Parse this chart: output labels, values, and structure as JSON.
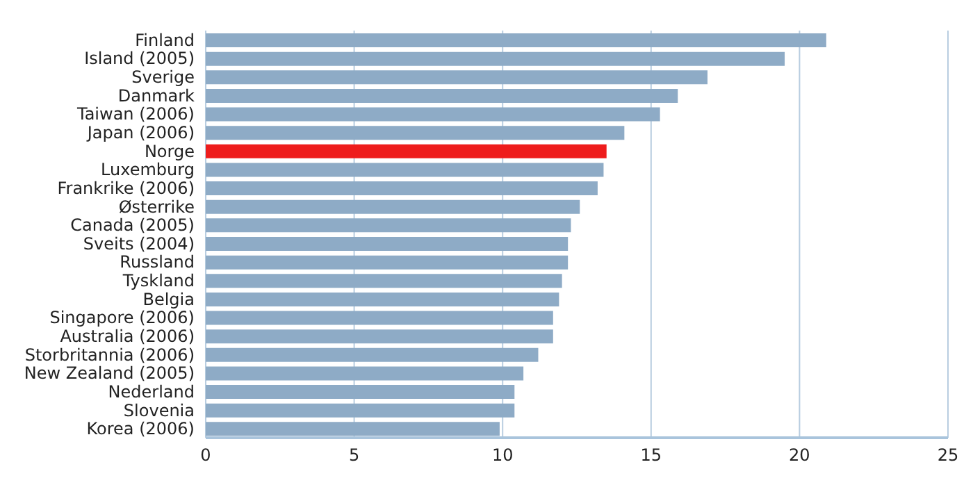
{
  "chart_data": {
    "type": "bar",
    "orientation": "horizontal",
    "categories": [
      "Finland",
      "Island (2005)",
      "Sverige",
      "Danmark",
      "Taiwan (2006)",
      "Japan (2006)",
      "Norge",
      "Luxemburg",
      "Frankrike (2006)",
      "Østerrike",
      "Canada (2005)",
      "Sveits (2004)",
      "Russland",
      "Tyskland",
      "Belgia",
      "Singapore (2006)",
      "Australia (2006)",
      "Storbritannia (2006)",
      "New Zealand (2005)",
      "Nederland",
      "Slovenia",
      "Korea (2006)"
    ],
    "values": [
      20.9,
      19.5,
      16.9,
      15.9,
      15.3,
      14.1,
      13.5,
      13.4,
      13.2,
      12.6,
      12.3,
      12.2,
      12.2,
      12.0,
      11.9,
      11.7,
      11.7,
      11.2,
      10.7,
      10.4,
      10.4,
      9.9
    ],
    "colors": [
      "#8eabc6",
      "#8eabc6",
      "#8eabc6",
      "#8eabc6",
      "#8eabc6",
      "#8eabc6",
      "#ee1c1c",
      "#8eabc6",
      "#8eabc6",
      "#8eabc6",
      "#8eabc6",
      "#8eabc6",
      "#8eabc6",
      "#8eabc6",
      "#8eabc6",
      "#8eabc6",
      "#8eabc6",
      "#8eabc6",
      "#8eabc6",
      "#8eabc6",
      "#8eabc6",
      "#8eabc6"
    ],
    "xlim": [
      0,
      25
    ],
    "xticks": [
      0,
      5,
      10,
      15,
      20,
      25
    ],
    "grid": "x",
    "legend": false
  }
}
